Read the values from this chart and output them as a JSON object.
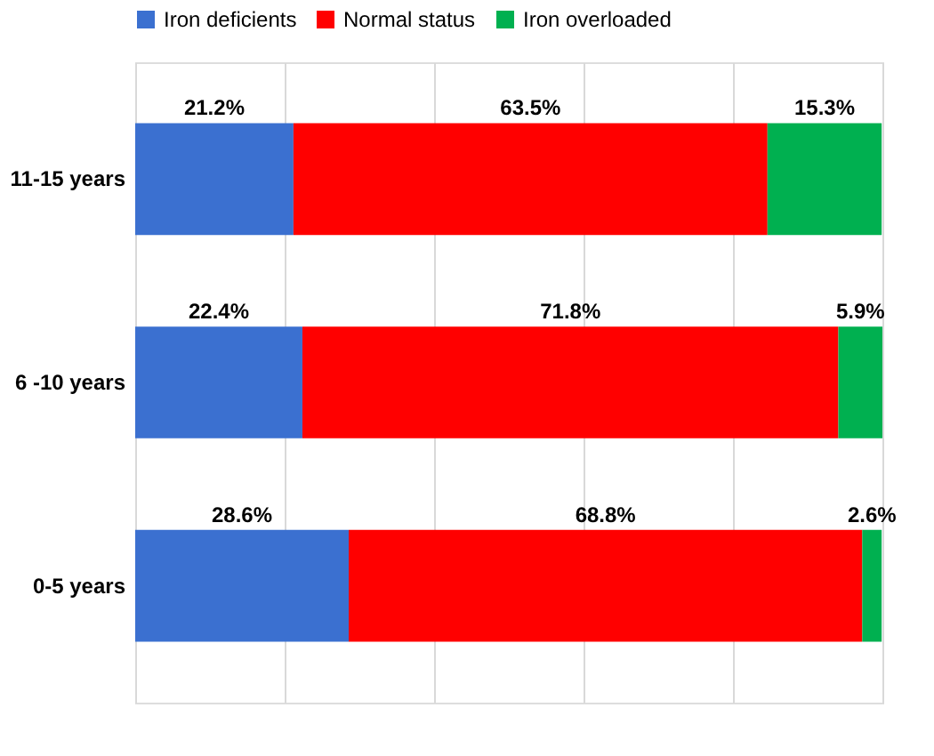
{
  "chart_data": {
    "type": "bar",
    "orientation": "horizontal",
    "stacked": true,
    "categories": [
      "11-15 years",
      "6 -10 years",
      "0-5 years"
    ],
    "series": [
      {
        "name": "Iron deficients",
        "color": "#3b70d0",
        "values": [
          21.2,
          22.4,
          28.6
        ],
        "value_labels": [
          "21.2%",
          "22.4%",
          "28.6%"
        ]
      },
      {
        "name": "Normal status",
        "color": "#ff0000",
        "values": [
          63.5,
          71.8,
          68.8
        ],
        "value_labels": [
          "63.5%",
          "71.8%",
          "68.8%"
        ]
      },
      {
        "name": "Iron overloaded",
        "color": "#00b050",
        "values": [
          15.3,
          5.9,
          2.6
        ],
        "value_labels": [
          "15.3%",
          "5.9%",
          "2.6%"
        ]
      }
    ],
    "grid": "x",
    "legend": "top",
    "tick_labels": "y"
  }
}
